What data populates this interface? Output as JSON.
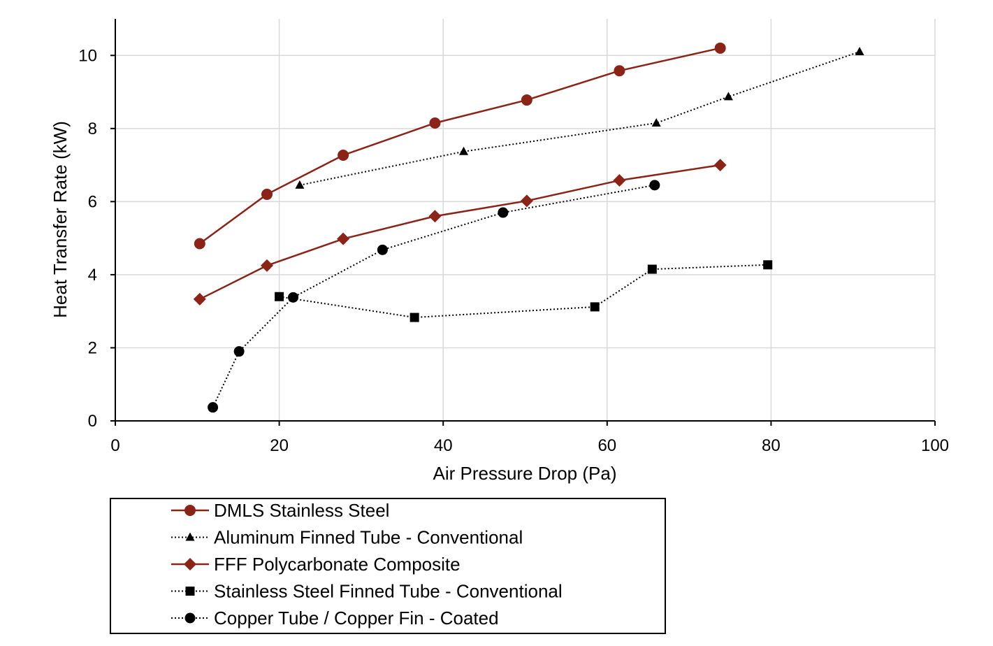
{
  "chart_data": {
    "type": "line",
    "xlabel": "Air Pressure Drop (Pa)",
    "ylabel": "Heat Transfer Rate (kW)",
    "xlim": [
      0,
      100
    ],
    "ylim": [
      0,
      11
    ],
    "x_ticks": [
      "0",
      "20",
      "40",
      "60",
      "80",
      "100"
    ],
    "y_ticks": [
      "0",
      "2",
      "4",
      "6",
      "8",
      "10"
    ],
    "grid": true,
    "legend_position": "bottom",
    "series": [
      {
        "name": "DMLS Stainless Steel",
        "color": "#8B2317",
        "line": "solid",
        "marker": "circle",
        "x": [
          10.3,
          18.5,
          27.8,
          39.0,
          50.2,
          61.5,
          73.8
        ],
        "y": [
          4.85,
          6.2,
          7.27,
          8.15,
          8.78,
          9.58,
          10.2
        ]
      },
      {
        "name": "Aluminum Finned Tube - Conventional",
        "color": "#000000",
        "line": "dotted",
        "marker": "triangle",
        "x": [
          22.5,
          42.5,
          66.0,
          74.8,
          90.8
        ],
        "y": [
          6.45,
          7.37,
          8.15,
          8.87,
          10.1
        ]
      },
      {
        "name": "FFF Polycarbonate Composite",
        "color": "#8B2317",
        "line": "solid",
        "marker": "diamond",
        "x": [
          10.3,
          18.5,
          27.8,
          39.0,
          50.2,
          61.5,
          73.8
        ],
        "y": [
          3.33,
          4.25,
          4.98,
          5.6,
          6.02,
          6.58,
          7.0
        ]
      },
      {
        "name": "Stainless Steel Finned Tube - Conventional",
        "color": "#000000",
        "line": "dotted",
        "marker": "square",
        "x": [
          20.0,
          36.5,
          58.5,
          65.5,
          79.6
        ],
        "y": [
          3.4,
          2.83,
          3.12,
          4.15,
          4.27
        ]
      },
      {
        "name": "Copper Tube / Copper Fin - Coated",
        "color": "#000000",
        "line": "dotted",
        "marker": "circle",
        "x": [
          11.9,
          15.1,
          21.7,
          32.6,
          47.3,
          65.8
        ],
        "y": [
          0.37,
          1.9,
          3.38,
          4.68,
          5.7,
          6.45
        ]
      }
    ]
  }
}
